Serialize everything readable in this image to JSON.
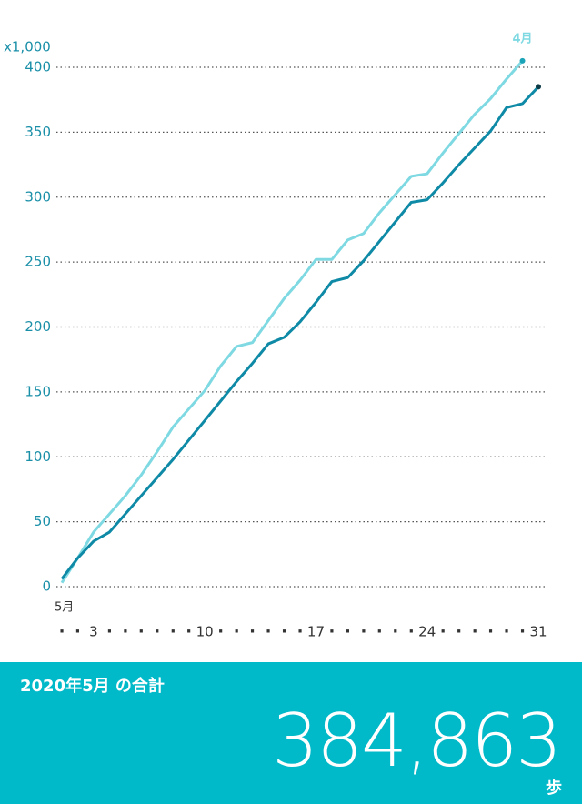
{
  "chart_data": {
    "type": "line",
    "y_unit_label": "x1,000",
    "xlabel": "5月",
    "x": [
      1,
      2,
      3,
      4,
      5,
      6,
      7,
      8,
      9,
      10,
      11,
      12,
      13,
      14,
      15,
      16,
      17,
      18,
      19,
      20,
      21,
      22,
      23,
      24,
      25,
      26,
      27,
      28,
      29,
      30,
      31
    ],
    "series": [
      {
        "name": "4月",
        "color": "#7ed9e2",
        "values": [
          3,
          22,
          42,
          56,
          70,
          86,
          104,
          123,
          137,
          151,
          170,
          185,
          188,
          205,
          222,
          236,
          252,
          252,
          267,
          272,
          288,
          302,
          316,
          318,
          334,
          349,
          364,
          376,
          391,
          405,
          null
        ]
      },
      {
        "color": "#0f8aa6",
        "values": [
          6,
          22,
          35,
          42,
          56,
          70,
          84,
          98,
          113,
          128,
          143,
          158,
          172,
          187,
          192,
          204,
          219,
          235,
          238,
          251,
          266,
          281,
          296,
          298,
          311,
          325,
          338,
          351,
          369,
          372,
          385
        ]
      }
    ],
    "xlim": [
      1,
      31
    ],
    "xticks": [
      {
        "value": 1,
        "label": "·"
      },
      {
        "value": 2,
        "label": "·"
      },
      3,
      {
        "value": 4,
        "label": "·"
      },
      {
        "value": 5,
        "label": "·"
      },
      {
        "value": 6,
        "label": "·"
      },
      {
        "value": 7,
        "label": "·"
      },
      {
        "value": 8,
        "label": "·"
      },
      {
        "value": 9,
        "label": "·"
      },
      10,
      {
        "value": 11,
        "label": "·"
      },
      {
        "value": 12,
        "label": "·"
      },
      {
        "value": 13,
        "label": "·"
      },
      {
        "value": 14,
        "label": "·"
      },
      {
        "value": 15,
        "label": "·"
      },
      {
        "value": 16,
        "label": "·"
      },
      17,
      {
        "value": 18,
        "label": "·"
      },
      {
        "value": 19,
        "label": "·"
      },
      {
        "value": 20,
        "label": "·"
      },
      {
        "value": 21,
        "label": "·"
      },
      {
        "value": 22,
        "label": "·"
      },
      {
        "value": 23,
        "label": "·"
      },
      24,
      {
        "value": 25,
        "label": "·"
      },
      {
        "value": 26,
        "label": "·"
      },
      {
        "value": 27,
        "label": "·"
      },
      {
        "value": 28,
        "label": "·"
      },
      {
        "value": 29,
        "label": "·"
      },
      {
        "value": 30,
        "label": "·"
      },
      31
    ],
    "ylim": [
      0,
      400
    ],
    "yticks": [
      0,
      50,
      100,
      150,
      200,
      250,
      300,
      350,
      400
    ],
    "grid": true
  },
  "summary": {
    "title": "2020年5月 の合計",
    "total": "384,863",
    "unit": "歩"
  }
}
